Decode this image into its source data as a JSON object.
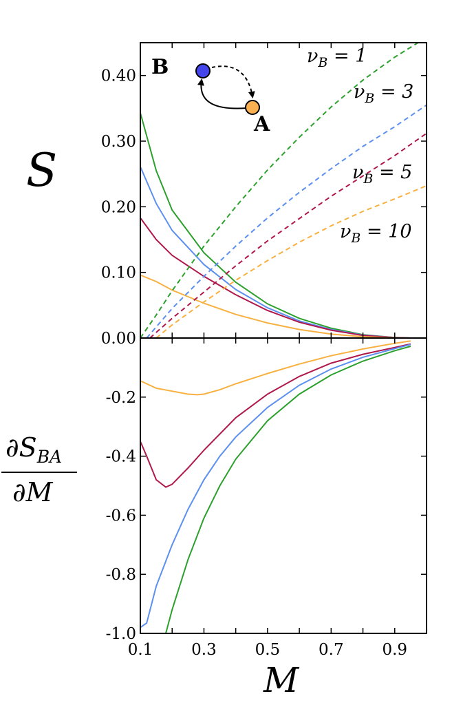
{
  "chart_data": [
    {
      "panel": "top",
      "type": "line",
      "xlim": [
        0.1,
        1.0
      ],
      "ylim": [
        0.0,
        0.45
      ],
      "ylabel": "S",
      "yticks": [
        0.0,
        0.1,
        0.2,
        0.3,
        0.4
      ],
      "ytick_labels": [
        "0.00",
        "0.10",
        "0.20",
        "0.30",
        "0.40"
      ],
      "panel_label": "B",
      "inset": {
        "node_top": "",
        "node_bottom": "A",
        "colors": {
          "top": "#4040ee",
          "bottom": "#f8b050"
        }
      },
      "series": [
        {
          "name": "solid_nuB1",
          "style": "solid",
          "color": "#2ca02c",
          "x": [
            0.1,
            0.15,
            0.2,
            0.3,
            0.4,
            0.5,
            0.6,
            0.7,
            0.8,
            0.9,
            0.95
          ],
          "y": [
            0.343,
            0.255,
            0.195,
            0.13,
            0.085,
            0.052,
            0.03,
            0.015,
            0.005,
            0.0008,
            0.0
          ]
        },
        {
          "name": "solid_nuB3",
          "style": "solid",
          "color": "#5b8ff0",
          "x": [
            0.1,
            0.15,
            0.2,
            0.3,
            0.4,
            0.5,
            0.6,
            0.7,
            0.8,
            0.9,
            0.95
          ],
          "y": [
            0.261,
            0.205,
            0.164,
            0.112,
            0.074,
            0.046,
            0.026,
            0.013,
            0.0045,
            0.0007,
            0.0
          ]
        },
        {
          "name": "solid_nuB5",
          "style": "solid",
          "color": "#b0184c",
          "x": [
            0.1,
            0.15,
            0.2,
            0.3,
            0.4,
            0.5,
            0.6,
            0.7,
            0.8,
            0.9,
            0.95
          ],
          "y": [
            0.183,
            0.15,
            0.126,
            0.094,
            0.066,
            0.042,
            0.024,
            0.012,
            0.004,
            0.0006,
            0.0
          ]
        },
        {
          "name": "solid_nuB10",
          "style": "solid",
          "color": "#f8b040",
          "x": [
            0.1,
            0.15,
            0.2,
            0.3,
            0.4,
            0.5,
            0.6,
            0.7,
            0.8,
            0.9,
            0.95
          ],
          "y": [
            0.096,
            0.086,
            0.073,
            0.053,
            0.036,
            0.023,
            0.013,
            0.006,
            0.002,
            0.0003,
            0.0
          ]
        },
        {
          "name": "dashed_nuB1",
          "style": "dashed",
          "color": "#2ca02c",
          "label": "ν_B = 1",
          "x": [
            0.1,
            0.15,
            0.2,
            0.3,
            0.4,
            0.5,
            0.6,
            0.7,
            0.8,
            0.9,
            1.0
          ],
          "y": [
            0.0,
            0.035,
            0.072,
            0.14,
            0.2,
            0.256,
            0.306,
            0.352,
            0.393,
            0.428,
            0.458
          ]
        },
        {
          "name": "dashed_nuB3",
          "style": "dashed",
          "color": "#5b8ff0",
          "label": "ν_B = 3",
          "x": [
            0.12,
            0.2,
            0.3,
            0.4,
            0.5,
            0.6,
            0.7,
            0.8,
            0.9,
            1.0
          ],
          "y": [
            0.0,
            0.045,
            0.094,
            0.14,
            0.183,
            0.222,
            0.258,
            0.292,
            0.322,
            0.355
          ]
        },
        {
          "name": "dashed_nuB5",
          "style": "dashed",
          "color": "#b0184c",
          "label": "ν_B = 5",
          "x": [
            0.13,
            0.2,
            0.3,
            0.4,
            0.5,
            0.6,
            0.7,
            0.8,
            0.9,
            1.0
          ],
          "y": [
            0.0,
            0.03,
            0.07,
            0.11,
            0.148,
            0.182,
            0.216,
            0.247,
            0.278,
            0.312
          ]
        },
        {
          "name": "dashed_nuB10",
          "style": "dashed",
          "color": "#f8b040",
          "label": "ν_B = 10",
          "x": [
            0.15,
            0.2,
            0.3,
            0.4,
            0.5,
            0.6,
            0.7,
            0.8,
            0.9,
            1.0
          ],
          "y": [
            0.0,
            0.02,
            0.055,
            0.088,
            0.118,
            0.146,
            0.171,
            0.193,
            0.212,
            0.232
          ]
        }
      ]
    },
    {
      "panel": "bottom",
      "type": "line",
      "xlim": [
        0.1,
        1.0
      ],
      "ylim": [
        -1.0,
        0.0
      ],
      "xlabel": "M",
      "ylabel": "∂S_BA / ∂M",
      "xticks": [
        0.1,
        0.3,
        0.5,
        0.7,
        0.9
      ],
      "xtick_labels": [
        "0.1",
        "0.3",
        "0.5",
        "0.7",
        "0.9"
      ],
      "yticks": [
        -1.0,
        -0.8,
        -0.6,
        -0.4,
        -0.2
      ],
      "ytick_labels": [
        "-1.0",
        "-0.8",
        "-0.6",
        "-0.4",
        "-0.2"
      ],
      "series": [
        {
          "name": "deriv_nuB10",
          "color": "#f8b040",
          "x": [
            0.1,
            0.15,
            0.2,
            0.25,
            0.28,
            0.3,
            0.35,
            0.4,
            0.5,
            0.6,
            0.7,
            0.8,
            0.9,
            0.95
          ],
          "y": [
            -0.145,
            -0.17,
            -0.18,
            -0.19,
            -0.192,
            -0.19,
            -0.175,
            -0.155,
            -0.12,
            -0.088,
            -0.06,
            -0.037,
            -0.018,
            -0.01
          ]
        },
        {
          "name": "deriv_nuB5",
          "color": "#b0184c",
          "x": [
            0.1,
            0.12,
            0.15,
            0.18,
            0.2,
            0.25,
            0.3,
            0.4,
            0.5,
            0.6,
            0.7,
            0.8,
            0.9,
            0.95
          ],
          "y": [
            -0.35,
            -0.4,
            -0.48,
            -0.505,
            -0.495,
            -0.44,
            -0.38,
            -0.27,
            -0.19,
            -0.13,
            -0.085,
            -0.055,
            -0.032,
            -0.02
          ]
        },
        {
          "name": "deriv_nuB3",
          "color": "#5b8ff0",
          "x": [
            0.1,
            0.12,
            0.15,
            0.2,
            0.25,
            0.3,
            0.35,
            0.4,
            0.5,
            0.6,
            0.7,
            0.8,
            0.9,
            0.95
          ],
          "y": [
            -0.98,
            -0.965,
            -0.84,
            -0.7,
            -0.58,
            -0.48,
            -0.4,
            -0.335,
            -0.235,
            -0.16,
            -0.105,
            -0.065,
            -0.036,
            -0.022
          ]
        },
        {
          "name": "deriv_nuB1",
          "color": "#2ca02c",
          "x": [
            0.18,
            0.2,
            0.25,
            0.3,
            0.35,
            0.4,
            0.5,
            0.6,
            0.7,
            0.8,
            0.9,
            0.95
          ],
          "y": [
            -1.0,
            -0.92,
            -0.75,
            -0.61,
            -0.5,
            -0.41,
            -0.28,
            -0.19,
            -0.125,
            -0.078,
            -0.043,
            -0.028
          ]
        }
      ]
    }
  ],
  "labels": {
    "panel_letter": "B",
    "node_a": "A",
    "nu1": {
      "base": "ν",
      "sub": "B",
      "rest": " = 1"
    },
    "nu3": {
      "base": "ν",
      "sub": "B",
      "rest": " = 3"
    },
    "nu5": {
      "base": "ν",
      "sub": "B",
      "rest": " = 5"
    },
    "nu10": {
      "base": "ν",
      "sub": "B",
      "rest": " = 10"
    },
    "top_ylabel": "S",
    "bottom_ylabel_num": {
      "base": "∂S",
      "sub": "BA"
    },
    "bottom_ylabel_den": "∂M",
    "xlabel": "M"
  }
}
